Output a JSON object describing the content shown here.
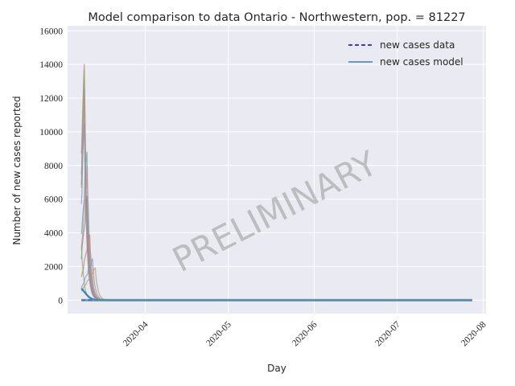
{
  "chart_data": {
    "type": "line",
    "title": "Model comparison to data Ontario - Northwestern, pop. = 81227",
    "xlabel": "Day",
    "ylabel": "Number of new cases reported",
    "watermark": "PRELIMINARY",
    "x_range": [
      "2020-03-09",
      "2020-07-28"
    ],
    "xlim": [
      "2020-03-04",
      "2020-08-02"
    ],
    "ylim": [
      -800,
      16300
    ],
    "x_ticks": [
      "2020-04",
      "2020-05",
      "2020-06",
      "2020-07",
      "2020-08"
    ],
    "x_tick_dates": [
      "2020-04-01",
      "2020-05-01",
      "2020-06-01",
      "2020-07-01",
      "2020-08-01"
    ],
    "y_ticks": [
      "0",
      "2000",
      "4000",
      "6000",
      "8000",
      "10000",
      "12000",
      "14000",
      "16000"
    ],
    "y_tick_values": [
      0,
      2000,
      4000,
      6000,
      8000,
      10000,
      12000,
      14000,
      16000
    ],
    "grid": true,
    "legend_placement": "top-right",
    "series": [
      {
        "name": "new cases data",
        "style": "dashed",
        "color": "#0000cc",
        "x": [
          "2020-03-09",
          "2020-07-28"
        ],
        "y": [
          0,
          0
        ]
      },
      {
        "name": "new cases model",
        "style": "solid",
        "color": "#3a7fc0",
        "x": [
          "2020-03-09",
          "2020-03-10",
          "2020-03-11",
          "2020-03-12",
          "2020-03-13",
          "2020-03-14",
          "2020-03-16",
          "2020-03-20",
          "2020-07-28"
        ],
        "y": [
          700,
          500,
          300,
          150,
          60,
          20,
          5,
          0,
          0
        ]
      }
    ],
    "ensemble": {
      "colors": [
        "#c97a6a",
        "#8aa86a",
        "#7a9ab8",
        "#b59a70",
        "#9a8fb0",
        "#6aa8a0",
        "#c48a9a",
        "#8a8a8a"
      ],
      "peaks": [
        15500,
        14000,
        13500,
        12200,
        11000,
        9500,
        8000,
        6500,
        4200,
        3400,
        2500,
        2000
      ],
      "peak_dates": [
        "2020-03-10",
        "2020-03-10",
        "2020-03-10",
        "2020-03-10",
        "2020-03-10",
        "2020-03-11",
        "2020-03-11",
        "2020-03-11",
        "2020-03-12",
        "2020-03-09",
        "2020-03-13",
        "2020-03-14"
      ]
    }
  }
}
